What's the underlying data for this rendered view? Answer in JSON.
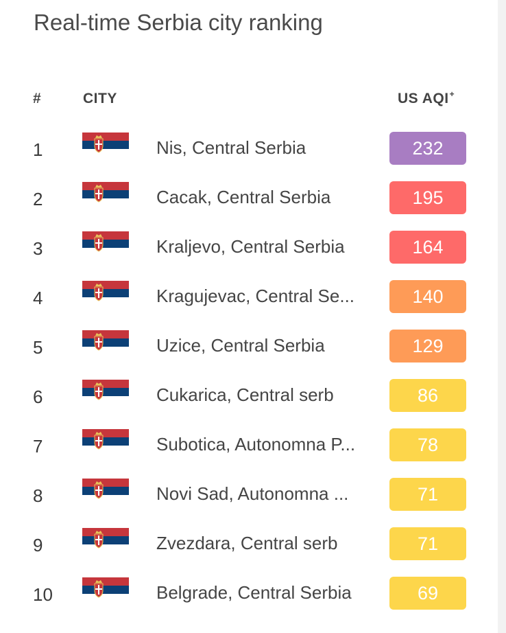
{
  "title": "Real-time Serbia city ranking",
  "header": {
    "rank": "#",
    "city": "CITY",
    "aqi": "US AQI",
    "aqi_mark": "+"
  },
  "icon": "serbia-flag-icon",
  "colors": {
    "very_unhealthy": "#a87dc2",
    "unhealthy": "#fe6a69",
    "sensitive": "#fe9b57",
    "moderate": "#fdd64b",
    "flag_red": "#c6363c",
    "flag_blue": "#0c4076",
    "flag_white": "#ffffff"
  },
  "rows": [
    {
      "rank": "1",
      "city": "Nis, Central Serbia",
      "aqi": "232",
      "level": "very_unhealthy"
    },
    {
      "rank": "2",
      "city": "Cacak, Central Serbia",
      "aqi": "195",
      "level": "unhealthy"
    },
    {
      "rank": "3",
      "city": "Kraljevo, Central Serbia",
      "aqi": "164",
      "level": "unhealthy"
    },
    {
      "rank": "4",
      "city": "Kragujevac, Central Se...",
      "aqi": "140",
      "level": "sensitive"
    },
    {
      "rank": "5",
      "city": "Uzice, Central Serbia",
      "aqi": "129",
      "level": "sensitive"
    },
    {
      "rank": "6",
      "city": "Cukarica, Central serb",
      "aqi": "86",
      "level": "moderate"
    },
    {
      "rank": "7",
      "city": "Subotica, Autonomna P...",
      "aqi": "78",
      "level": "moderate"
    },
    {
      "rank": "8",
      "city": "Novi Sad, Autonomna ...",
      "aqi": "71",
      "level": "moderate"
    },
    {
      "rank": "9",
      "city": "Zvezdara, Central serb",
      "aqi": "71",
      "level": "moderate"
    },
    {
      "rank": "10",
      "city": "Belgrade, Central Serbia",
      "aqi": "69",
      "level": "moderate"
    }
  ]
}
